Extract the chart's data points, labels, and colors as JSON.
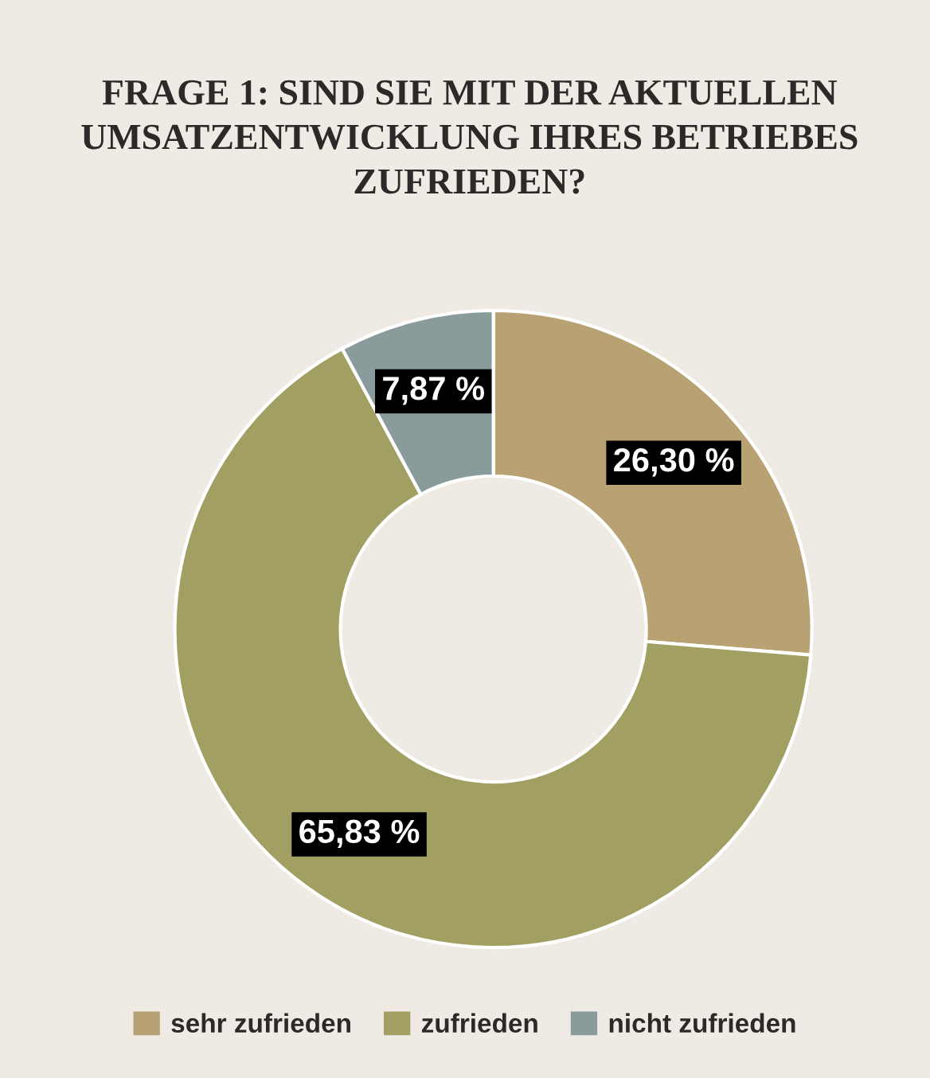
{
  "chart_data": {
    "type": "donut",
    "title": "FRAGE 1: SIND SIE MIT DER AKTUELLEN\nUMSATZENTWICKLUNG IHRES BETRIEBES\nZUFRIEDEN?",
    "categories": [
      "sehr zufrieden",
      "zufrieden",
      "nicht zufrieden"
    ],
    "values": [
      26.3,
      65.83,
      7.87
    ],
    "colors": [
      "#b8a273",
      "#a19f61",
      "#8a9b9b"
    ],
    "value_labels": [
      "26,30 %",
      "65,83 %",
      "7,87 %"
    ],
    "legend": "bottom"
  }
}
